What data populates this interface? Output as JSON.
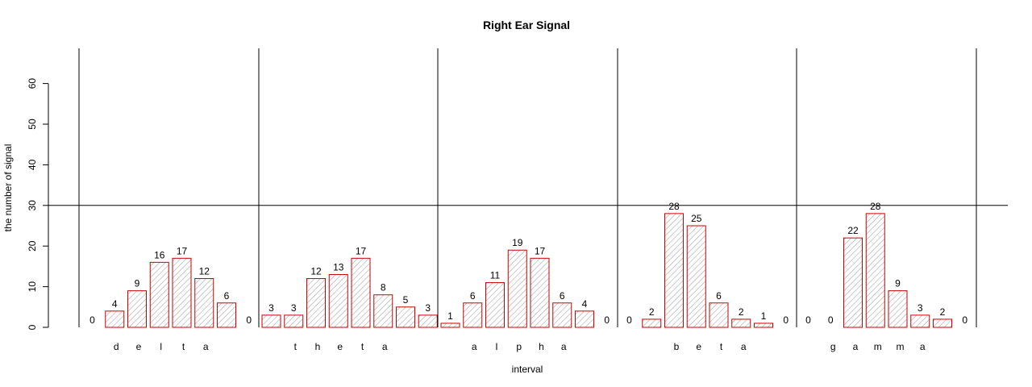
{
  "chart_data": {
    "type": "bar",
    "title": "Right Ear Signal",
    "xlabel": "interval",
    "ylabel": "the number of signal",
    "ylim": [
      0,
      60
    ],
    "yticks": [
      0,
      10,
      20,
      30,
      40,
      50,
      60
    ],
    "reference_line_y": 30,
    "grid": false,
    "legend": "none",
    "colors": {
      "bar_border": "#cc0000",
      "hatch": "#999999",
      "axis": "#000000"
    },
    "groups": [
      {
        "letters": [
          "d",
          "e",
          "l",
          "t",
          "a"
        ],
        "values": [
          0,
          4,
          9,
          16,
          17,
          12,
          6,
          0
        ]
      },
      {
        "letters": [
          "t",
          "h",
          "e",
          "t",
          "a"
        ],
        "values": [
          3,
          3,
          12,
          13,
          17,
          8,
          5,
          3
        ]
      },
      {
        "letters": [
          "a",
          "l",
          "p",
          "h",
          "a"
        ],
        "values": [
          1,
          6,
          11,
          19,
          17,
          6,
          4,
          0
        ]
      },
      {
        "letters": [
          "b",
          "e",
          "t",
          "a"
        ],
        "values": [
          0,
          2,
          28,
          25,
          6,
          2,
          1,
          0
        ]
      },
      {
        "letters": [
          "g",
          "a",
          "m",
          "m",
          "a"
        ],
        "values": [
          0,
          0,
          22,
          28,
          9,
          3,
          2,
          0
        ]
      }
    ]
  }
}
